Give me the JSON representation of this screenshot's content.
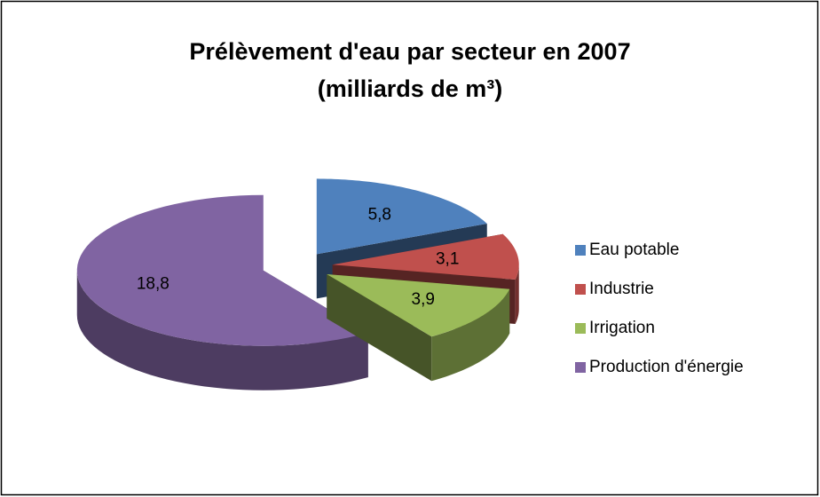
{
  "chart_data": {
    "type": "pie",
    "title": "Prélèvement d'eau par secteur en 2007",
    "subtitle": "(milliards de m³)",
    "categories": [
      "Eau potable",
      "Industrie",
      "Irrigation",
      "Production d'énergie"
    ],
    "values": [
      5.8,
      3.1,
      3.9,
      18.8
    ],
    "value_labels": [
      "5,8",
      "3,1",
      "3,9",
      "18,8"
    ],
    "colors": [
      "#4f81bd",
      "#c0504d",
      "#9bbb59",
      "#8064a2"
    ],
    "legend": "right"
  }
}
